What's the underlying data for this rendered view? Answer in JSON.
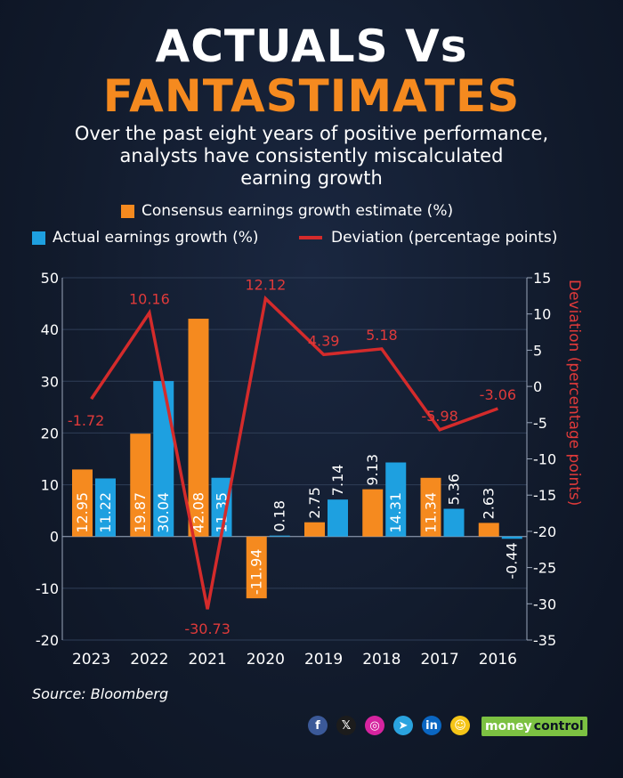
{
  "title_line1": "ACTUALS Vs",
  "title_line2": "FANTASTIMATES",
  "subtitle_line1": "Over the past eight years of positive performance,",
  "subtitle_line2": "analysts have consistently miscalculated",
  "subtitle_line3": "earning growth",
  "source": "Source: Bloomberg",
  "brand": {
    "part1": "money",
    "part2": "control"
  },
  "social_icons": [
    {
      "name": "facebook-icon",
      "glyph": "f",
      "color": "#3b5998"
    },
    {
      "name": "x-icon",
      "glyph": "𝕏",
      "color": "#1c1c1c"
    },
    {
      "name": "instagram-icon",
      "glyph": "◎",
      "color": "#d6249f"
    },
    {
      "name": "telegram-icon",
      "glyph": "➤",
      "color": "#2aa3df"
    },
    {
      "name": "linkedin-icon",
      "glyph": "in",
      "color": "#0a66c2"
    },
    {
      "name": "koo-icon",
      "glyph": "☺",
      "color": "#f5c518"
    }
  ],
  "colors": {
    "estimate": "#f58a1f",
    "actual": "#1ea0e0",
    "deviation": "#d42b2b",
    "deviation_label": "#e03a3a",
    "grid": "#2f3e57"
  },
  "chart_data": {
    "type": "bar",
    "categories": [
      "2023",
      "2022",
      "2021",
      "2020",
      "2019",
      "2018",
      "2017",
      "2016"
    ],
    "series": [
      {
        "name": "Consensus earnings growth estimate (%)",
        "type": "bar",
        "axis": "left",
        "values": [
          12.95,
          19.87,
          42.08,
          -11.94,
          2.75,
          9.13,
          11.34,
          2.63
        ],
        "labels": [
          "12.95",
          "19.87",
          "42.08",
          "-11.94",
          "2.75",
          "9.13",
          "11.34",
          "2.63"
        ]
      },
      {
        "name": "Actual earnings growth (%)",
        "type": "bar",
        "axis": "left",
        "values": [
          11.22,
          30.04,
          11.35,
          0.18,
          7.14,
          14.31,
          5.36,
          -0.44
        ],
        "labels": [
          "11.22",
          "30.04",
          "11.35",
          "0.18",
          "7.14",
          "14.31",
          "5.36",
          "-0.44"
        ]
      },
      {
        "name": "Deviation (percentage points)",
        "type": "line",
        "axis": "right",
        "values": [
          -1.72,
          10.16,
          -30.73,
          12.12,
          4.39,
          5.18,
          -5.98,
          -3.06
        ],
        "labels": [
          "-1.72",
          "10.16",
          "-30.73",
          "12.12",
          "4.39",
          "5.18",
          "-5.98",
          "-3.06"
        ]
      }
    ],
    "left_axis": {
      "ylim": [
        -20,
        50
      ],
      "ticks": [
        "50",
        "40",
        "30",
        "20",
        "10",
        "0",
        "-10",
        "-20"
      ]
    },
    "right_axis": {
      "ylim": [
        -35,
        15
      ],
      "label": "Deviation (percentage points)",
      "ticks": [
        "15",
        "10",
        "5",
        "0",
        "-5",
        "-10",
        "-15",
        "-20",
        "-25",
        "-30",
        "-35"
      ]
    },
    "grid": true,
    "legend_placement": "top"
  }
}
